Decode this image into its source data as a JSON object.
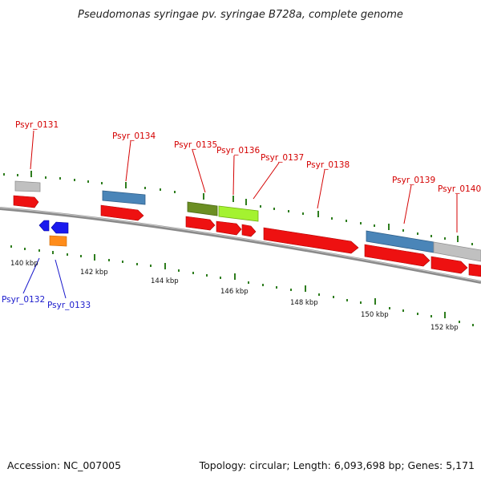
{
  "title": "Pseudomonas syringae pv. syringae B728a, complete genome",
  "footer": {
    "accession": "Accession: NC_007005",
    "topology": "Topology: circular; Length: 6,093,698 bp; Genes: 5,171"
  },
  "colors": {
    "backbone": "#8a8a8a",
    "tick": "#2e7d1e",
    "cds": "#ee1111",
    "cds_reverse": "#1a1aee",
    "top_label": "#d40000",
    "bottom_label": "#1a1acc",
    "feature_grey": "#c0c0c0",
    "feature_steelblue": "#4a85b8",
    "feature_olive": "#6b8e23",
    "feature_lime": "#a4f230",
    "feature_orange": "#ff8c1a"
  },
  "ruler": {
    "unit": "kbp",
    "labels": [
      "140 kbp",
      "142 kbp",
      "144 kbp",
      "146 kbp",
      "148 kbp",
      "150 kbp",
      "152 kbp"
    ]
  },
  "genes_top": [
    "Psyr_0131",
    "Psyr_0134",
    "Psyr_0135",
    "Psyr_0136",
    "Psyr_0137",
    "Psyr_0138",
    "Psyr_0139",
    "Psyr_0140"
  ],
  "genes_bottom": [
    "Psyr_0132",
    "Psyr_0133"
  ]
}
